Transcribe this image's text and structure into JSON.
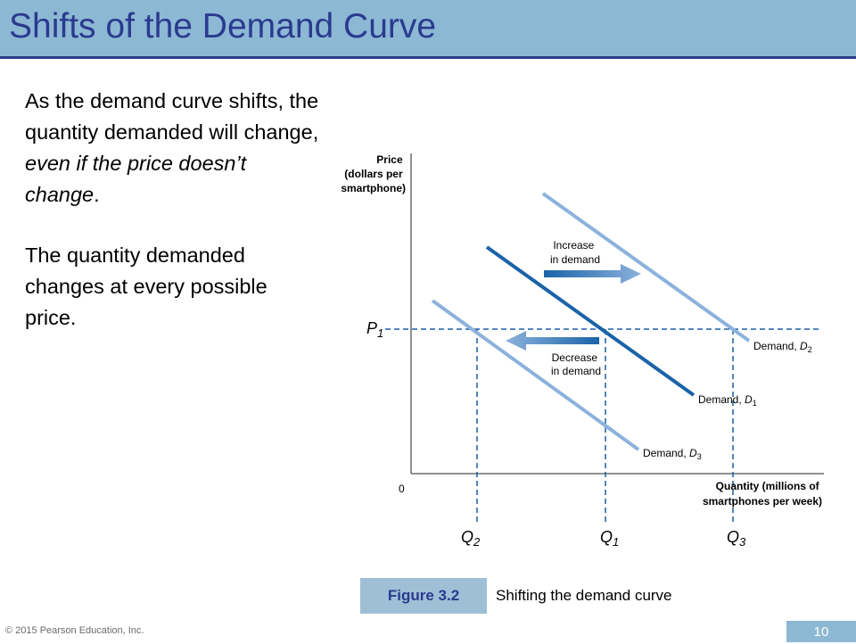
{
  "slide": {
    "title": "Shifts of the Demand Curve",
    "paragraph1_normal": "As the demand curve shifts, the quantity demanded will change, ",
    "paragraph1_italic": "even if the price doesn’t change",
    "paragraph1_end": ".",
    "paragraph2": "The quantity demanded changes at every possible price.",
    "figure_label": "Figure 3.2",
    "figure_caption": "Shifting the demand curve",
    "copyright": "© 2015 Pearson Education, Inc.",
    "page_number": "10"
  },
  "diagram": {
    "y_axis_label": [
      "Price",
      "(dollars per",
      "smartphone)"
    ],
    "x_axis_label": [
      "Quantity (millions of",
      "smartphones per week)"
    ],
    "origin_label": "0",
    "price_label": "P",
    "price_label_sub": "1",
    "quantity_labels": [
      {
        "main": "Q",
        "sub": "2"
      },
      {
        "main": "Q",
        "sub": "1"
      },
      {
        "main": "Q",
        "sub": "3"
      }
    ],
    "curves": [
      {
        "label": "Demand, ",
        "var": "D",
        "sub": "2",
        "color": "#8cb2dc"
      },
      {
        "label": "Demand, ",
        "var": "D",
        "sub": "1",
        "color": "#1a63a8"
      },
      {
        "label": "Demand, ",
        "var": "D",
        "sub": "3",
        "color": "#8cb2dc"
      }
    ],
    "increase_label": [
      "Increase",
      "in demand"
    ],
    "decrease_label": [
      "Decrease",
      "in demand"
    ],
    "colors": {
      "axis": "#6d6d6d",
      "dashed": "#1a5ea8",
      "arrow": "#4f8fd0"
    }
  }
}
